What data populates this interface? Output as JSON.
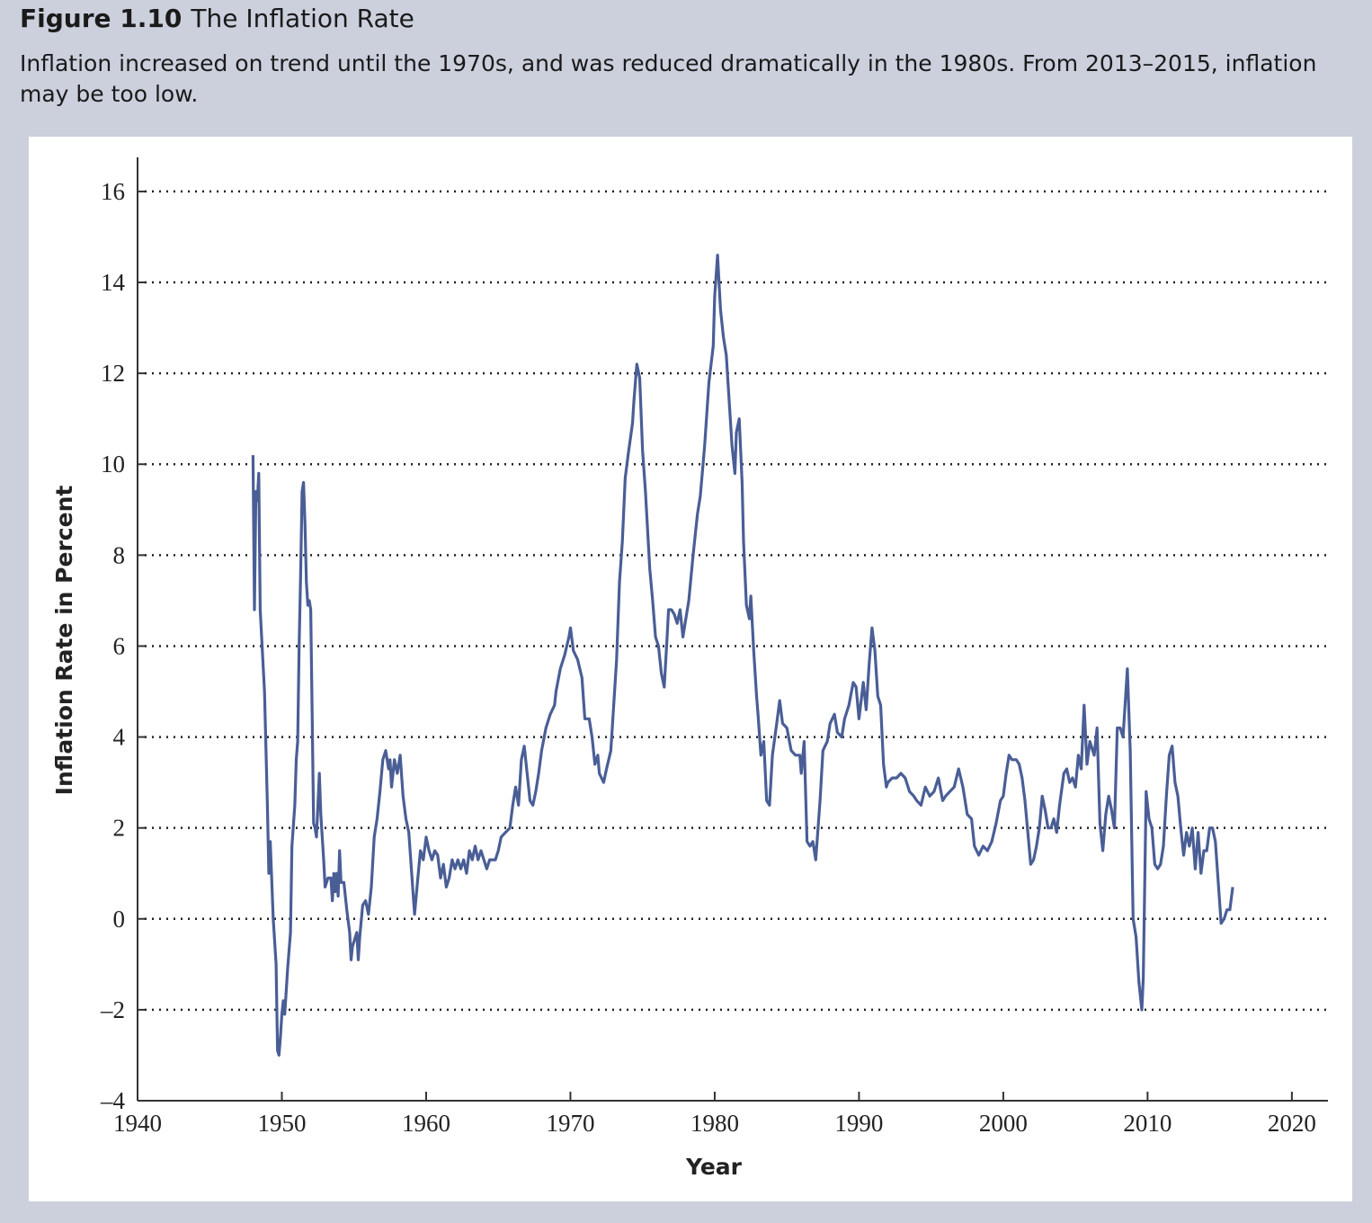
{
  "chart_data": {
    "type": "line",
    "figure_label": "Figure 1.10",
    "title": "The Inflation Rate",
    "subtitle": "Inflation increased on trend until the 1970s, and was reduced dramatically in the 1980s. From 2013–2015, inflation may be too low.",
    "x_label": "Year",
    "y_label": "Inflation Rate in Percent",
    "color": "#4a5e96",
    "grid": true,
    "xlim": [
      1940,
      2022.5
    ],
    "xticks": [
      1940,
      1950,
      1960,
      1970,
      1980,
      1990,
      2000,
      2010,
      2020
    ],
    "ylim": [
      -4,
      16.75
    ],
    "yticks": [
      {
        "value": -4,
        "label": "–4"
      },
      {
        "value": -2,
        "label": "–2"
      },
      0,
      2,
      4,
      6,
      8,
      10,
      12,
      14,
      16
    ],
    "x": [
      1948.0,
      1948.1,
      1948.2,
      1948.3,
      1948.4,
      1948.5,
      1948.8,
      1949.0,
      1949.1,
      1949.2,
      1949.4,
      1949.6,
      1949.7,
      1949.8,
      1949.9,
      1950.0,
      1950.1,
      1950.2,
      1950.4,
      1950.6,
      1950.7,
      1950.9,
      1951.0,
      1951.1,
      1951.2,
      1951.3,
      1951.4,
      1951.5,
      1951.6,
      1951.7,
      1951.8,
      1951.9,
      1952.0,
      1952.1,
      1952.2,
      1952.3,
      1952.4,
      1952.5,
      1952.6,
      1952.7,
      1952.9,
      1953.0,
      1953.2,
      1953.4,
      1953.5,
      1953.6,
      1953.7,
      1953.8,
      1953.9,
      1954.0,
      1954.1,
      1954.3,
      1954.5,
      1954.7,
      1954.8,
      1954.9,
      1955.0,
      1955.2,
      1955.3,
      1955.4,
      1955.6,
      1955.8,
      1956.0,
      1956.2,
      1956.4,
      1956.6,
      1956.8,
      1957.0,
      1957.2,
      1957.4,
      1957.5,
      1957.6,
      1957.8,
      1958.0,
      1958.2,
      1958.4,
      1958.6,
      1958.8,
      1959.0,
      1959.2,
      1959.4,
      1959.6,
      1959.8,
      1960.0,
      1960.2,
      1960.4,
      1960.6,
      1960.8,
      1961.0,
      1961.2,
      1961.4,
      1961.6,
      1961.8,
      1962.0,
      1962.2,
      1962.4,
      1962.6,
      1962.8,
      1963.0,
      1963.2,
      1963.4,
      1963.6,
      1963.8,
      1964.0,
      1964.2,
      1964.4,
      1964.6,
      1964.8,
      1965.0,
      1965.2,
      1965.5,
      1965.8,
      1966.0,
      1966.2,
      1966.4,
      1966.6,
      1966.8,
      1967.0,
      1967.2,
      1967.4,
      1967.6,
      1967.8,
      1968.0,
      1968.3,
      1968.6,
      1968.9,
      1969.0,
      1969.3,
      1969.6,
      1969.9,
      1970.0,
      1970.2,
      1970.5,
      1970.8,
      1971.0,
      1971.3,
      1971.5,
      1971.7,
      1971.9,
      1972.0,
      1972.3,
      1972.5,
      1972.8,
      1973.0,
      1973.2,
      1973.4,
      1973.6,
      1973.8,
      1974.0,
      1974.3,
      1974.4,
      1974.6,
      1974.8,
      1975.0,
      1975.2,
      1975.5,
      1975.7,
      1975.9,
      1976.1,
      1976.3,
      1976.5,
      1976.7,
      1976.8,
      1977.0,
      1977.2,
      1977.4,
      1977.6,
      1977.8,
      1978.0,
      1978.2,
      1978.5,
      1978.8,
      1979.0,
      1979.3,
      1979.6,
      1979.9,
      1980.0,
      1980.2,
      1980.4,
      1980.6,
      1980.8,
      1981.0,
      1981.2,
      1981.4,
      1981.5,
      1981.7,
      1981.9,
      1982.0,
      1982.2,
      1982.4,
      1982.5,
      1982.7,
      1982.9,
      1983.0,
      1983.2,
      1983.4,
      1983.6,
      1983.8,
      1984.0,
      1984.3,
      1984.5,
      1984.7,
      1985.0,
      1985.3,
      1985.6,
      1985.9,
      1986.0,
      1986.2,
      1986.4,
      1986.6,
      1986.8,
      1987.0,
      1987.3,
      1987.5,
      1987.8,
      1988.0,
      1988.3,
      1988.5,
      1988.8,
      1989.0,
      1989.3,
      1989.6,
      1989.8,
      1990.0,
      1990.3,
      1990.5,
      1990.7,
      1990.9,
      1991.1,
      1991.3,
      1991.5,
      1991.7,
      1991.9,
      1992.0,
      1992.3,
      1992.6,
      1992.9,
      1993.2,
      1993.5,
      1993.8,
      1994.0,
      1994.3,
      1994.6,
      1994.9,
      1995.2,
      1995.5,
      1995.8,
      1996.0,
      1996.3,
      1996.6,
      1996.9,
      1997.2,
      1997.5,
      1997.8,
      1998.0,
      1998.3,
      1998.6,
      1998.9,
      1999.2,
      1999.5,
      1999.8,
      2000.0,
      2000.2,
      2000.4,
      2000.6,
      2000.9,
      2001.1,
      2001.3,
      2001.5,
      2001.7,
      2001.9,
      2002.1,
      2002.3,
      2002.5,
      2002.7,
      2002.9,
      2003.1,
      2003.3,
      2003.5,
      2003.7,
      2003.9,
      2004.2,
      2004.4,
      2004.6,
      2004.8,
      2005.0,
      2005.2,
      2005.4,
      2005.6,
      2005.8,
      2006.0,
      2006.3,
      2006.5,
      2006.7,
      2006.9,
      2007.1,
      2007.3,
      2007.5,
      2007.7,
      2007.9,
      2008.1,
      2008.3,
      2008.5,
      2008.6,
      2008.8,
      2009.0,
      2009.2,
      2009.4,
      2009.6,
      2009.7,
      2009.9,
      2010.1,
      2010.3,
      2010.5,
      2010.7,
      2010.9,
      2011.1,
      2011.3,
      2011.5,
      2011.7,
      2011.9,
      2012.1,
      2012.3,
      2012.5,
      2012.7,
      2012.9,
      2013.1,
      2013.3,
      2013.5,
      2013.7,
      2013.9,
      2014.1,
      2014.3,
      2014.5,
      2014.7,
      2014.9,
      2015.1,
      2015.3,
      2015.5,
      2015.7,
      2015.9
    ],
    "values": [
      10.2,
      6.8,
      9.4,
      9.2,
      9.8,
      6.8,
      5.0,
      2.5,
      1.0,
      1.7,
      0.0,
      -1.0,
      -2.9,
      -3.0,
      -2.6,
      -2.1,
      -1.8,
      -2.1,
      -1.1,
      -0.3,
      1.6,
      2.5,
      3.5,
      3.9,
      6.0,
      7.5,
      9.4,
      9.6,
      8.7,
      7.4,
      6.9,
      7.0,
      6.8,
      4.5,
      2.1,
      2.0,
      1.8,
      2.5,
      3.2,
      2.3,
      1.3,
      0.7,
      0.9,
      0.9,
      0.4,
      1.0,
      0.6,
      1.0,
      0.5,
      1.5,
      0.8,
      0.8,
      0.2,
      -0.3,
      -0.9,
      -0.6,
      -0.5,
      -0.3,
      -0.9,
      -0.4,
      0.3,
      0.4,
      0.1,
      0.7,
      1.8,
      2.2,
      2.8,
      3.5,
      3.7,
      3.3,
      3.5,
      2.9,
      3.5,
      3.2,
      3.6,
      2.7,
      2.2,
      1.9,
      1.0,
      0.1,
      0.8,
      1.5,
      1.3,
      1.8,
      1.5,
      1.3,
      1.5,
      1.4,
      0.9,
      1.2,
      0.7,
      0.9,
      1.3,
      1.1,
      1.3,
      1.1,
      1.3,
      1.0,
      1.5,
      1.3,
      1.6,
      1.3,
      1.5,
      1.3,
      1.1,
      1.3,
      1.3,
      1.3,
      1.5,
      1.8,
      1.9,
      2.0,
      2.5,
      2.9,
      2.5,
      3.5,
      3.8,
      3.2,
      2.6,
      2.5,
      2.8,
      3.2,
      3.7,
      4.2,
      4.5,
      4.7,
      5.0,
      5.5,
      5.8,
      6.2,
      6.4,
      5.9,
      5.7,
      5.3,
      4.4,
      4.4,
      4.0,
      3.4,
      3.6,
      3.2,
      3.0,
      3.3,
      3.7,
      4.7,
      5.7,
      7.4,
      8.3,
      9.7,
      10.2,
      10.9,
      11.4,
      12.2,
      11.9,
      10.3,
      9.4,
      7.7,
      7.0,
      6.2,
      6.0,
      5.4,
      5.1,
      6.2,
      6.8,
      6.8,
      6.7,
      6.5,
      6.8,
      6.2,
      6.6,
      7.0,
      8.0,
      8.9,
      9.3,
      10.4,
      11.8,
      12.6,
      13.7,
      14.6,
      13.4,
      12.8,
      12.4,
      11.4,
      10.4,
      9.8,
      10.7,
      11.0,
      9.6,
      8.3,
      6.9,
      6.6,
      7.1,
      5.9,
      4.9,
      4.5,
      3.6,
      3.9,
      2.6,
      2.5,
      3.6,
      4.3,
      4.8,
      4.3,
      4.2,
      3.7,
      3.6,
      3.6,
      3.2,
      3.9,
      1.7,
      1.6,
      1.7,
      1.3,
      2.6,
      3.7,
      3.9,
      4.3,
      4.5,
      4.1,
      4.0,
      4.4,
      4.7,
      5.2,
      5.1,
      4.4,
      5.2,
      4.6,
      5.6,
      6.4,
      5.9,
      4.9,
      4.7,
      3.4,
      2.9,
      3.0,
      3.1,
      3.1,
      3.2,
      3.1,
      2.8,
      2.7,
      2.6,
      2.5,
      2.9,
      2.7,
      2.8,
      3.1,
      2.6,
      2.7,
      2.8,
      2.9,
      3.3,
      2.9,
      2.3,
      2.2,
      1.6,
      1.4,
      1.6,
      1.5,
      1.7,
      2.1,
      2.6,
      2.7,
      3.2,
      3.6,
      3.5,
      3.5,
      3.4,
      3.1,
      2.6,
      1.9,
      1.2,
      1.3,
      1.6,
      2.0,
      2.7,
      2.4,
      2.0,
      2.0,
      2.2,
      1.9,
      2.5,
      3.2,
      3.3,
      3.0,
      3.1,
      2.9,
      3.6,
      3.3,
      4.7,
      3.4,
      3.9,
      3.6,
      4.2,
      2.1,
      1.5,
      2.3,
      2.7,
      2.4,
      2.0,
      4.2,
      4.2,
      4.0,
      5.0,
      5.5,
      3.7,
      0.0,
      -0.4,
      -1.4,
      -2.0,
      -1.3,
      2.8,
      2.2,
      2.0,
      1.2,
      1.1,
      1.2,
      1.6,
      2.7,
      3.6,
      3.8,
      3.0,
      2.7,
      2.0,
      1.4,
      1.9,
      1.6,
      2.0,
      1.1,
      1.9,
      1.0,
      1.5,
      1.5,
      2.0,
      2.0,
      1.7,
      0.8,
      -0.1,
      0.0,
      0.2,
      0.2,
      0.7
    ]
  }
}
